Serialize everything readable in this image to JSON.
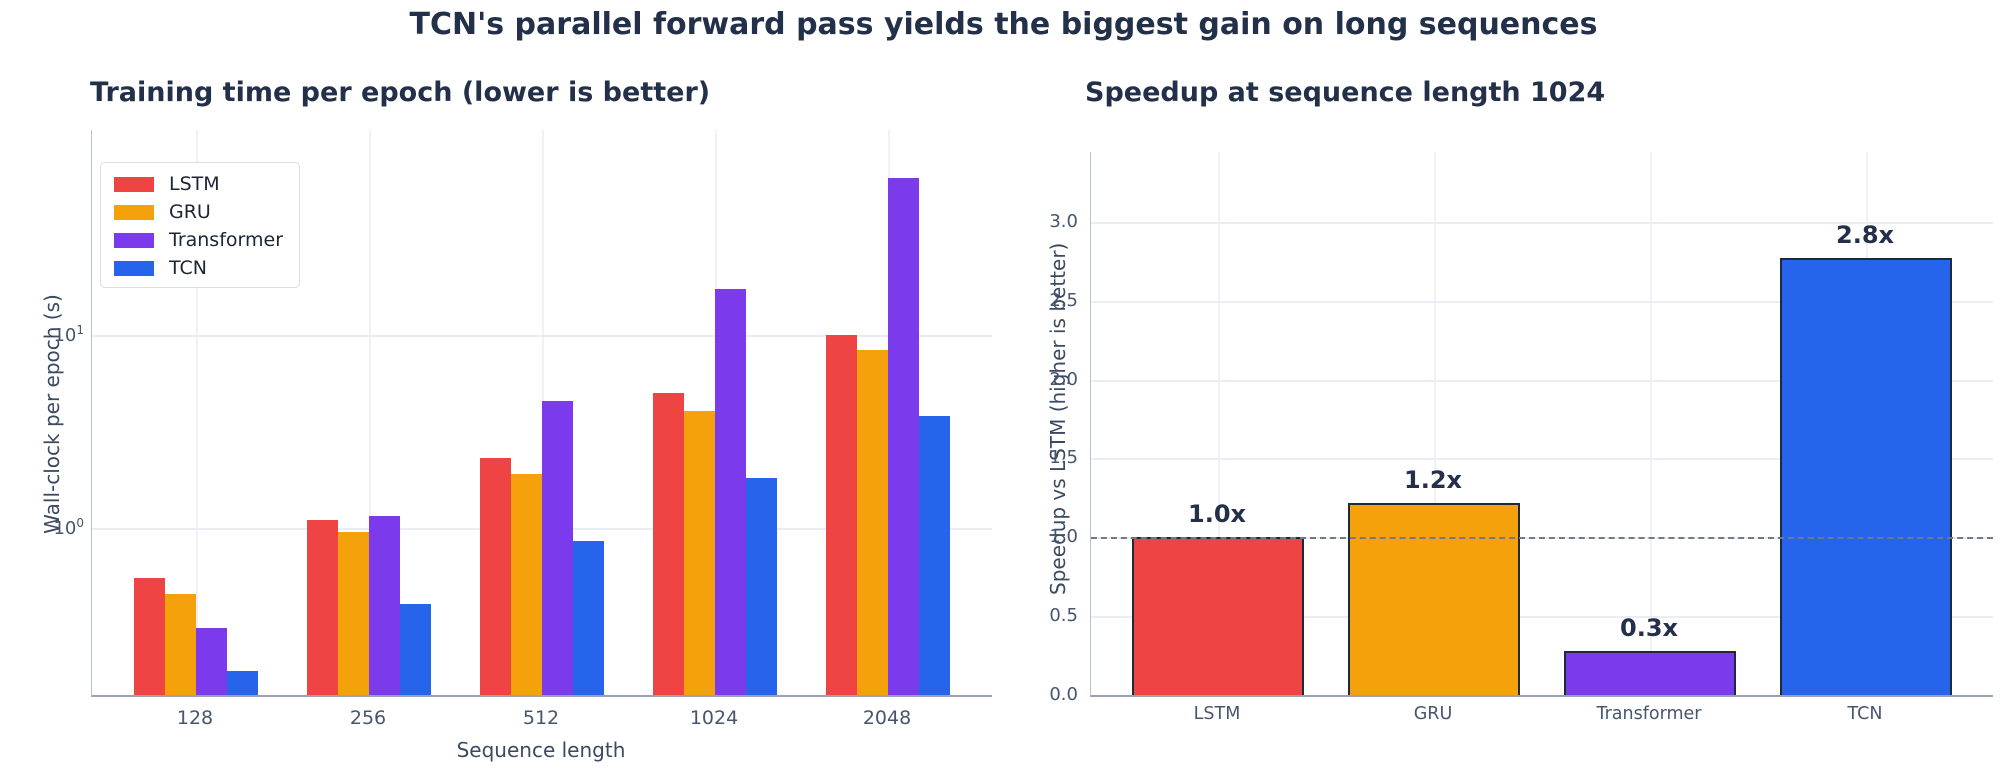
{
  "main_title": "TCN's parallel forward pass yields the biggest gain on long sequences",
  "colors": {
    "lstm": "#ef4444",
    "gru": "#f5a10b",
    "transformer": "#7c3aed",
    "tcn": "#2564eb",
    "title_text": "#233049",
    "tick_text": "#46566e",
    "grid": "#e9eef5",
    "bar_edge": "#1f2937",
    "reference_line": "#6f7a89"
  },
  "chart_data": [
    {
      "type": "bar",
      "title": "Training time per epoch (lower is better)",
      "xlabel": "Sequence length",
      "ylabel": "Wall-clock per epoch (s)",
      "yscale": "log",
      "ylim": [
        0.135,
        115
      ],
      "grid": true,
      "legend_position": "upper left",
      "categories": [
        "128",
        "256",
        "512",
        "1024",
        "2048"
      ],
      "ytick_labels": [
        "10^1",
        "10^0"
      ],
      "ytick_values": [
        10,
        1
      ],
      "series": [
        {
          "name": "LSTM",
          "color": "#ef4444",
          "values": [
            0.55,
            1.1,
            2.3,
            5.0,
            10.0
          ]
        },
        {
          "name": "GRU",
          "color": "#f5a10b",
          "values": [
            0.45,
            0.95,
            1.9,
            4.0,
            8.3
          ]
        },
        {
          "name": "Transformer",
          "color": "#7c3aed",
          "values": [
            0.3,
            1.15,
            4.5,
            17.3,
            65.0
          ]
        },
        {
          "name": "TCN",
          "color": "#2564eb",
          "values": [
            0.18,
            0.4,
            0.85,
            1.8,
            3.8
          ]
        }
      ]
    },
    {
      "type": "bar",
      "title": "Speedup at sequence length 1024",
      "xlabel": "",
      "ylabel": "Speedup vs LSTM (higher is better)",
      "yscale": "linear",
      "ylim": [
        0,
        3.44
      ],
      "grid": true,
      "categories": [
        "LSTM",
        "GRU",
        "Transformer",
        "TCN"
      ],
      "values": [
        1.0,
        1.22,
        0.28,
        2.77
      ],
      "bar_labels": [
        "1.0x",
        "1.2x",
        "0.3x",
        "2.8x"
      ],
      "bar_colors": [
        "#ef4444",
        "#f5a10b",
        "#7c3aed",
        "#2564eb"
      ],
      "yticks": [
        "0.0",
        "0.5",
        "1.0",
        "1.5",
        "2.0",
        "2.5",
        "3.0"
      ],
      "reference_line": {
        "y": 1.0,
        "style": "dashed"
      }
    }
  ]
}
